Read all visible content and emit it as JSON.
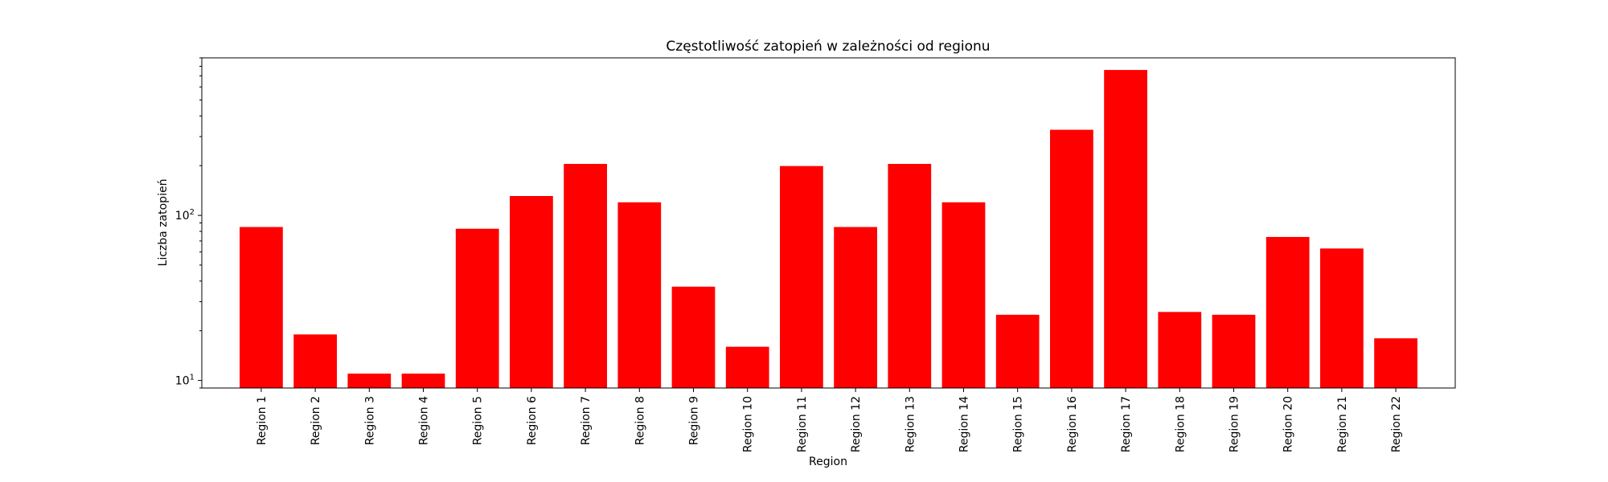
{
  "chart_data": {
    "type": "bar",
    "title": "Częstotliwość zatopień w zależności od regionu",
    "xlabel": "Region",
    "ylabel": "Liczba zatopień",
    "yscale": "log",
    "ylim": [
      9,
      900
    ],
    "y_tick_labels": [
      {
        "value": 10,
        "base": "10",
        "exp": "1"
      },
      {
        "value": 100,
        "base": "10",
        "exp": "2"
      }
    ],
    "categories": [
      "Region 1",
      "Region 2",
      "Region 3",
      "Region 4",
      "Region 5",
      "Region 6",
      "Region 7",
      "Region 8",
      "Region 9",
      "Region 10",
      "Region 11",
      "Region 12",
      "Region 13",
      "Region 14",
      "Region 15",
      "Region 16",
      "Region 17",
      "Region 18",
      "Region 19",
      "Region 20",
      "Region 21",
      "Region 22"
    ],
    "values": [
      85,
      19,
      11,
      11,
      83,
      131,
      205,
      120,
      37,
      16,
      199,
      85,
      205,
      120,
      25,
      330,
      760,
      26,
      25,
      74,
      63,
      18
    ],
    "bar_color": "#ff0000",
    "grid": false,
    "legend": "none"
  }
}
